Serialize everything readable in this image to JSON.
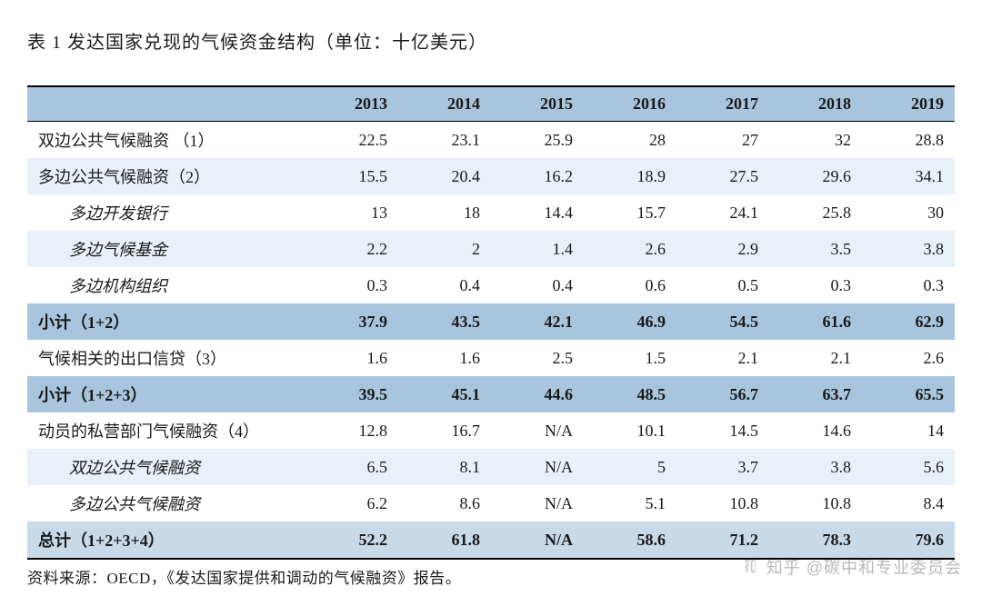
{
  "title": "表 1 发达国家兑现的气候资金结构（单位：十亿美元）",
  "source_prefix": "资料来源：",
  "source_org": "OECD",
  "source_suffix": "，《发达国家提供和调动的气候融资》报告。",
  "watermark_text": "知乎 @碳中和专业委员会",
  "table": {
    "header_blank": "",
    "years": [
      "2013",
      "2014",
      "2015",
      "2016",
      "2017",
      "2018",
      "2019"
    ],
    "rows": [
      {
        "label": "双边公共气候融资 （1）",
        "v": [
          "22.5",
          "23.1",
          "25.9",
          "28",
          "27",
          "32",
          "28.8"
        ],
        "cls": "normal"
      },
      {
        "label": "多边公共气候融资（2）",
        "v": [
          "15.5",
          "20.4",
          "16.2",
          "18.9",
          "27.5",
          "29.6",
          "34.1"
        ],
        "cls": "alt"
      },
      {
        "label": "多边开发银行",
        "v": [
          "13",
          "18",
          "14.4",
          "15.7",
          "24.1",
          "25.8",
          "30"
        ],
        "cls": "normal indent"
      },
      {
        "label": "多边气候基金",
        "v": [
          "2.2",
          "2",
          "1.4",
          "2.6",
          "2.9",
          "3.5",
          "3.8"
        ],
        "cls": "alt indent"
      },
      {
        "label": "多边机构组织",
        "v": [
          "0.3",
          "0.4",
          "0.4",
          "0.6",
          "0.5",
          "0.3",
          "0.3"
        ],
        "cls": "normal indent"
      },
      {
        "label": "小计（1+2）",
        "v": [
          "37.9",
          "43.5",
          "42.1",
          "46.9",
          "54.5",
          "61.6",
          "62.9"
        ],
        "cls": "subtotal"
      },
      {
        "label": "气候相关的出口信贷（3）",
        "v": [
          "1.6",
          "1.6",
          "2.5",
          "1.5",
          "2.1",
          "2.1",
          "2.6"
        ],
        "cls": "normal"
      },
      {
        "label": "小计（1+2+3）",
        "v": [
          "39.5",
          "45.1",
          "44.6",
          "48.5",
          "56.7",
          "63.7",
          "65.5"
        ],
        "cls": "subtotal"
      },
      {
        "label": "动员的私营部门气候融资（4）",
        "v": [
          "12.8",
          "16.7",
          "N/A",
          "10.1",
          "14.5",
          "14.6",
          "14"
        ],
        "cls": "normal"
      },
      {
        "label": "双边公共气候融资",
        "v": [
          "6.5",
          "8.1",
          "N/A",
          "5",
          "3.7",
          "3.8",
          "5.6"
        ],
        "cls": "alt indent"
      },
      {
        "label": "多边公共气候融资",
        "v": [
          "6.2",
          "8.6",
          "N/A",
          "5.1",
          "10.8",
          "10.8",
          "8.4"
        ],
        "cls": "normal indent"
      },
      {
        "label": "总计（1+2+3+4）",
        "v": [
          "52.2",
          "61.8",
          "N/A",
          "58.6",
          "71.2",
          "78.3",
          "79.6"
        ],
        "cls": "total"
      }
    ]
  },
  "styling": {
    "header_bg": "#a8c5dd",
    "subtotal_bg": "#a8c5dd",
    "total_bg": "#c8d9e8",
    "alt_bg": "#eaf0f7",
    "normal_bg": "#ffffff",
    "border_color": "#000000",
    "title_fontsize": 20,
    "cell_fontsize": 18,
    "header_font_weight": "bold",
    "font_family_cn": "SimSun",
    "font_family_num": "Times New Roman"
  }
}
